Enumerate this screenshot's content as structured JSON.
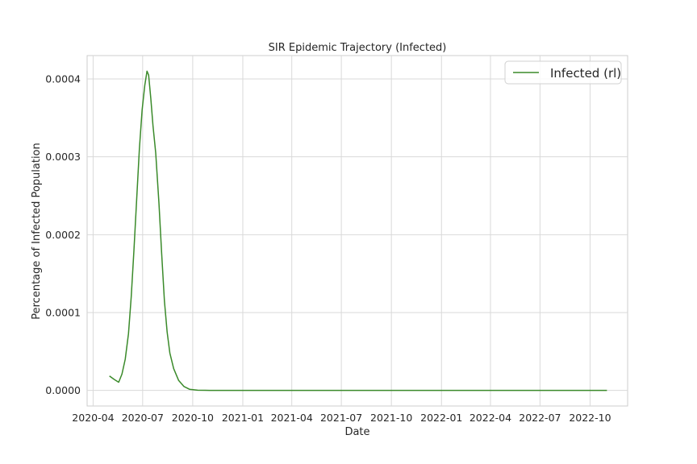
{
  "chart_data": {
    "type": "line",
    "title": "SIR Epidemic Trajectory (Infected)",
    "xlabel": "Date",
    "ylabel": "Percentage of Infected Population",
    "x_ticks": [
      "2020-04",
      "2020-07",
      "2020-10",
      "2021-01",
      "2021-04",
      "2021-07",
      "2021-10",
      "2022-01",
      "2022-04",
      "2022-07",
      "2022-10"
    ],
    "y_ticks": [
      "0.0000",
      "0.0001",
      "0.0002",
      "0.0003",
      "0.0004"
    ],
    "ylim": [
      -2e-05,
      0.00043
    ],
    "xlim": [
      "2020-03-21",
      "2022-12-09"
    ],
    "grid": true,
    "legend_position": "top-right",
    "series": [
      {
        "name": "Infected (rl)",
        "color": "#3a8a2a",
        "points": [
          [
            "2020-05-01",
            1.85e-05
          ],
          [
            "2020-05-10",
            1.4e-05
          ],
          [
            "2020-05-18",
            1.05e-05
          ],
          [
            "2020-05-24",
            2.1e-05
          ],
          [
            "2020-05-30",
            4e-05
          ],
          [
            "2020-06-05",
            7.3e-05
          ],
          [
            "2020-06-10",
            0.00012
          ],
          [
            "2020-06-15",
            0.00018
          ],
          [
            "2020-06-20",
            0.000245
          ],
          [
            "2020-06-25",
            0.00031
          ],
          [
            "2020-06-30",
            0.00036
          ],
          [
            "2020-07-05",
            0.000392
          ],
          [
            "2020-07-09",
            0.00041
          ],
          [
            "2020-07-12",
            0.000405
          ],
          [
            "2020-07-16",
            0.000375
          ],
          [
            "2020-07-20",
            0.00034
          ],
          [
            "2020-07-25",
            0.000305
          ],
          [
            "2020-07-31",
            0.00024
          ],
          [
            "2020-08-05",
            0.000175
          ],
          [
            "2020-08-10",
            0.000115
          ],
          [
            "2020-08-15",
            7.5e-05
          ],
          [
            "2020-08-20",
            4.8e-05
          ],
          [
            "2020-08-27",
            2.8e-05
          ],
          [
            "2020-09-05",
            1.3e-05
          ],
          [
            "2020-09-15",
            5e-06
          ],
          [
            "2020-09-25",
            1.5e-06
          ],
          [
            "2020-10-10",
            3e-07
          ],
          [
            "2020-11-01",
            5e-08
          ],
          [
            "2021-01-01",
            0.0
          ],
          [
            "2021-07-01",
            0.0
          ],
          [
            "2022-01-01",
            0.0
          ],
          [
            "2022-07-01",
            0.0
          ],
          [
            "2022-11-01",
            0.0
          ]
        ]
      }
    ]
  }
}
